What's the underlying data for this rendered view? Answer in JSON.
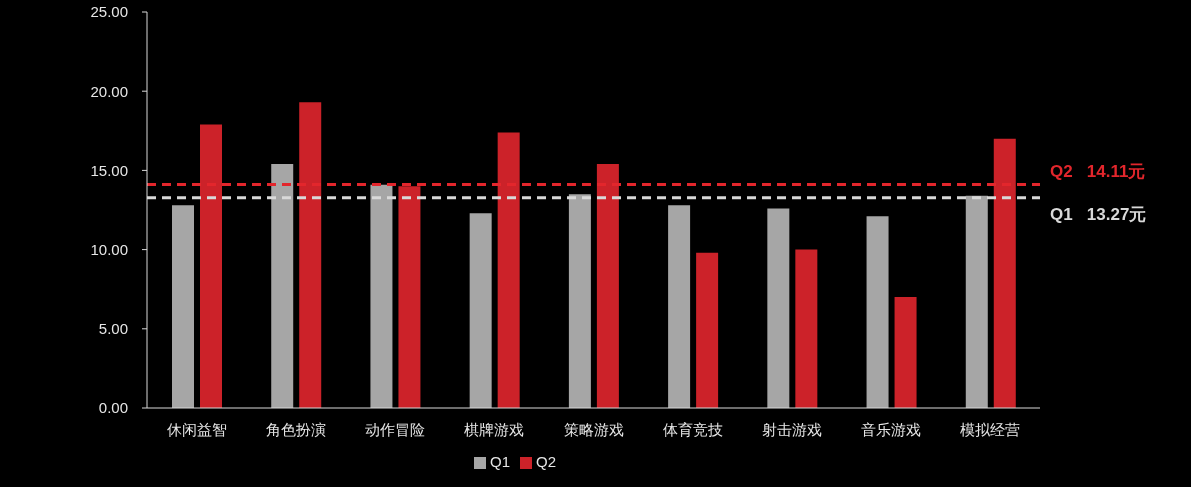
{
  "chart_data": {
    "type": "bar",
    "categories": [
      "休闲益智",
      "角色扮演",
      "动作冒险",
      "棋牌游戏",
      "策略游戏",
      "体育竞技",
      "射击游戏",
      "音乐游戏",
      "模拟经营"
    ],
    "series": [
      {
        "name": "Q1",
        "color": "#a6a6a6",
        "values": [
          12.8,
          15.4,
          14.1,
          12.3,
          13.5,
          12.8,
          12.6,
          12.1,
          13.4
        ]
      },
      {
        "name": "Q2",
        "color": "#cc2229",
        "values": [
          17.9,
          19.3,
          14.0,
          17.4,
          15.4,
          9.8,
          10.0,
          7.0,
          17.0
        ]
      }
    ],
    "ylim": [
      0,
      25
    ],
    "yticks": [
      {
        "value": 0,
        "label": "0.00"
      },
      {
        "value": 5,
        "label": "5.00"
      },
      {
        "value": 10,
        "label": "10.00"
      },
      {
        "value": 15,
        "label": "15.00"
      },
      {
        "value": 20,
        "label": "20.00"
      },
      {
        "value": 25,
        "label": "25.00"
      }
    ],
    "ref_lines": [
      {
        "axis": "y",
        "value": 14.11,
        "label": "Q2   14.11元",
        "color": "#e3262c",
        "line_style": "dashed"
      },
      {
        "axis": "y",
        "value": 13.27,
        "label": "Q1   13.27元",
        "color": "#d9d9d9",
        "line_style": "dashed"
      }
    ],
    "legend": "bottom"
  }
}
